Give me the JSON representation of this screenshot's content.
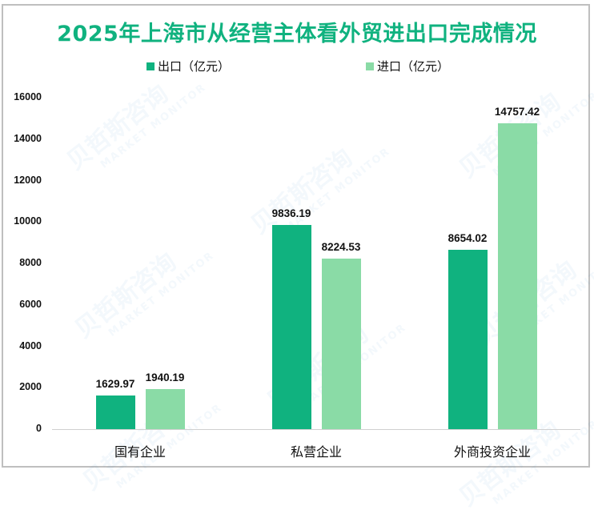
{
  "title": "2025年上海市从经营主体看外贸进出口完成情况",
  "legend": [
    {
      "label": "出口（亿元）",
      "color": "#10b27f"
    },
    {
      "label": "进口（亿元）",
      "color": "#8adba6"
    }
  ],
  "watermark": {
    "cn": "贝哲斯咨询",
    "en": "MARKET MONITOR"
  },
  "chart_data": {
    "type": "bar",
    "title": "2025年上海市从经营主体看外贸进出口完成情况",
    "categories": [
      "国有企业",
      "私营企业",
      "外商投资企业"
    ],
    "series": [
      {
        "name": "出口（亿元）",
        "color": "#10b27f",
        "values": [
          1629.97,
          9836.19,
          8654.02
        ],
        "labels": [
          "1629.97",
          "9836.19",
          "8654.02"
        ]
      },
      {
        "name": "进口（亿元）",
        "color": "#8adba6",
        "values": [
          1940.19,
          8224.53,
          14757.42
        ],
        "labels": [
          "1940.19",
          "8224.53",
          "14757.42"
        ]
      }
    ],
    "xlabel": "",
    "ylabel": "",
    "ylim": [
      0,
      16000
    ],
    "yticks": [
      "0",
      "2000",
      "4000",
      "6000",
      "8000",
      "10000",
      "12000",
      "14000",
      "16000"
    ],
    "grid": false,
    "legend_position": "top"
  }
}
